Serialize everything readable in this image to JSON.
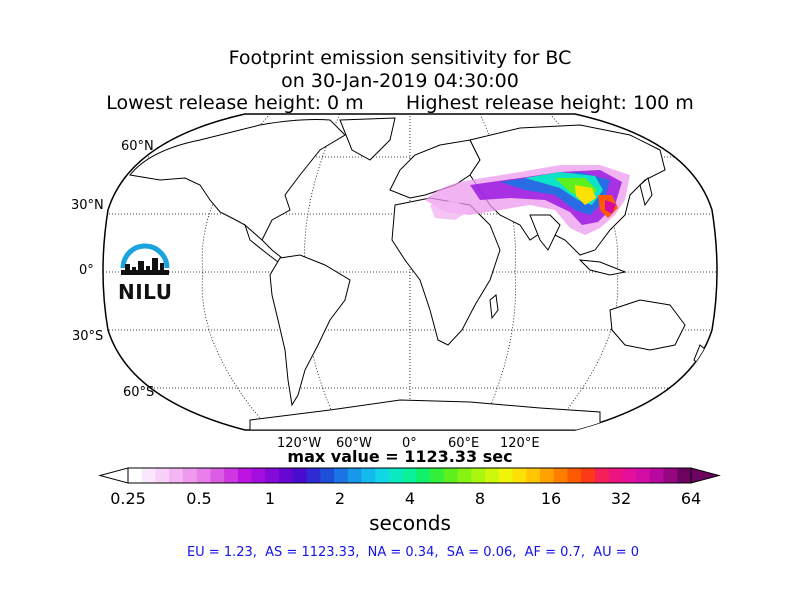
{
  "title": {
    "line1": "Footprint emission sensitivity for BC",
    "line2": "on 30-Jan-2019 04:30:00",
    "line3": "Lowest release height: 0 m       Highest release height: 100 m"
  },
  "map": {
    "projection": "Robinson",
    "lat_labels": [
      "60°N",
      "30°N",
      "0°",
      "30°S",
      "60°S"
    ],
    "lon_labels": [
      "120°W",
      "60°W",
      "0°",
      "60°E",
      "120°E"
    ],
    "coastline_color": "#000000",
    "footprint_region": "East Asia / Central Asia"
  },
  "logo": {
    "text": "NILU",
    "arc_color": "#1aa3dc"
  },
  "max_value": "max value = 1123.33 sec",
  "colorbar": {
    "tick_labels": [
      "0.25",
      "0.5",
      "1",
      "2",
      "4",
      "8",
      "16",
      "32",
      "64"
    ],
    "units": "seconds",
    "colors": [
      "#ffffff",
      "#fce8fc",
      "#f8d0f8",
      "#f3b5f3",
      "#ee9aee",
      "#e77ee9",
      "#dc5ce6",
      "#cf37e3",
      "#bf13e0",
      "#a40ddd",
      "#850ad9",
      "#6607d4",
      "#4a0bd1",
      "#2e2ad4",
      "#1d4fdb",
      "#1a74e3",
      "#1898ea",
      "#14b9ed",
      "#10d6e5",
      "#0ceac4",
      "#09f199",
      "#10f069",
      "#33f03a",
      "#5df01f",
      "#86f313",
      "#abf60e",
      "#cef80b",
      "#eef508",
      "#fde105",
      "#ffc402",
      "#ffa200",
      "#ff7e00",
      "#ff5a02",
      "#fc3a18",
      "#f5205a",
      "#ee1480",
      "#e4109c",
      "#d30ca6",
      "#b708a0",
      "#95067f",
      "#6d0360"
    ]
  },
  "regions_text": "EU = 1.23,  AS = 1123.33,  NA = 0.34,  SA = 0.06,  AF = 0.7,  AU = 0"
}
